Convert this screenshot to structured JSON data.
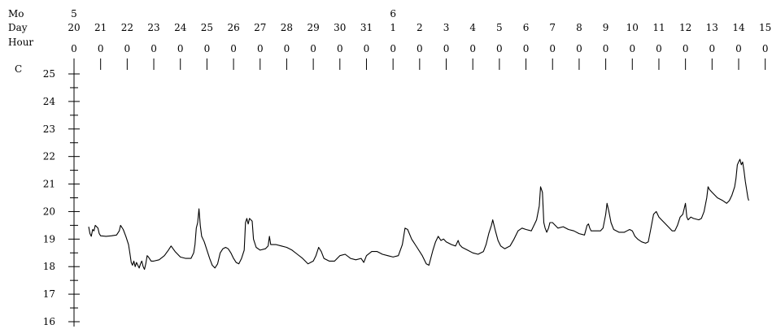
{
  "chart_data": {
    "type": "line",
    "row_labels": {
      "month": "Mo",
      "day": "Day",
      "hour": "Hour"
    },
    "ylabel": "C",
    "months": [
      {
        "day_index": 0,
        "label": "5"
      },
      {
        "day_index": 12,
        "label": "6"
      }
    ],
    "days": [
      "20",
      "21",
      "22",
      "23",
      "24",
      "25",
      "26",
      "27",
      "28",
      "29",
      "30",
      "31",
      "1",
      "2",
      "3",
      "4",
      "5",
      "6",
      "7",
      "8",
      "9",
      "10",
      "11",
      "12",
      "13",
      "14",
      "15"
    ],
    "hours": [
      "0",
      "0",
      "0",
      "0",
      "0",
      "0",
      "0",
      "0",
      "0",
      "0",
      "0",
      "0",
      "0",
      "0",
      "0",
      "0",
      "0",
      "0",
      "0",
      "0",
      "0",
      "0",
      "0",
      "0",
      "0",
      "0",
      "0"
    ],
    "ylim": [
      16,
      25
    ],
    "yticks": [
      16,
      17,
      18,
      19,
      20,
      21,
      22,
      23,
      24,
      25
    ],
    "x_unit": "days since May 20 00:00",
    "series": [
      {
        "points": [
          [
            0.55,
            19.45
          ],
          [
            0.6,
            19.2
          ],
          [
            0.65,
            19.1
          ],
          [
            0.7,
            19.35
          ],
          [
            0.75,
            19.3
          ],
          [
            0.8,
            19.5
          ],
          [
            0.85,
            19.45
          ],
          [
            0.9,
            19.4
          ],
          [
            0.95,
            19.2
          ],
          [
            1.0,
            19.12
          ],
          [
            1.2,
            19.1
          ],
          [
            1.4,
            19.12
          ],
          [
            1.6,
            19.15
          ],
          [
            1.7,
            19.3
          ],
          [
            1.75,
            19.5
          ],
          [
            1.85,
            19.35
          ],
          [
            1.95,
            19.1
          ],
          [
            2.05,
            18.8
          ],
          [
            2.1,
            18.5
          ],
          [
            2.15,
            18.15
          ],
          [
            2.2,
            18.05
          ],
          [
            2.25,
            18.2
          ],
          [
            2.3,
            18.0
          ],
          [
            2.35,
            18.15
          ],
          [
            2.4,
            18.05
          ],
          [
            2.45,
            17.95
          ],
          [
            2.5,
            18.1
          ],
          [
            2.55,
            18.2
          ],
          [
            2.6,
            18.0
          ],
          [
            2.65,
            17.9
          ],
          [
            2.7,
            18.1
          ],
          [
            2.75,
            18.4
          ],
          [
            2.8,
            18.35
          ],
          [
            2.9,
            18.2
          ],
          [
            3.0,
            18.2
          ],
          [
            3.2,
            18.25
          ],
          [
            3.4,
            18.4
          ],
          [
            3.55,
            18.6
          ],
          [
            3.65,
            18.75
          ],
          [
            3.8,
            18.55
          ],
          [
            4.0,
            18.35
          ],
          [
            4.2,
            18.3
          ],
          [
            4.4,
            18.3
          ],
          [
            4.5,
            18.5
          ],
          [
            4.55,
            18.8
          ],
          [
            4.6,
            19.4
          ],
          [
            4.65,
            19.6
          ],
          [
            4.7,
            20.1
          ],
          [
            4.75,
            19.5
          ],
          [
            4.8,
            19.1
          ],
          [
            4.9,
            18.9
          ],
          [
            5.0,
            18.6
          ],
          [
            5.1,
            18.3
          ],
          [
            5.2,
            18.05
          ],
          [
            5.3,
            17.95
          ],
          [
            5.4,
            18.1
          ],
          [
            5.5,
            18.5
          ],
          [
            5.6,
            18.65
          ],
          [
            5.7,
            18.7
          ],
          [
            5.8,
            18.65
          ],
          [
            5.9,
            18.5
          ],
          [
            6.0,
            18.3
          ],
          [
            6.1,
            18.15
          ],
          [
            6.2,
            18.1
          ],
          [
            6.3,
            18.3
          ],
          [
            6.4,
            18.6
          ],
          [
            6.45,
            19.6
          ],
          [
            6.5,
            19.75
          ],
          [
            6.55,
            19.55
          ],
          [
            6.6,
            19.75
          ],
          [
            6.7,
            19.65
          ],
          [
            6.75,
            19.0
          ],
          [
            6.85,
            18.7
          ],
          [
            7.0,
            18.6
          ],
          [
            7.2,
            18.65
          ],
          [
            7.3,
            18.75
          ],
          [
            7.35,
            19.1
          ],
          [
            7.4,
            18.8
          ],
          [
            7.6,
            18.8
          ],
          [
            7.8,
            18.75
          ],
          [
            8.0,
            18.7
          ],
          [
            8.2,
            18.6
          ],
          [
            8.4,
            18.45
          ],
          [
            8.6,
            18.3
          ],
          [
            8.8,
            18.1
          ],
          [
            9.0,
            18.2
          ],
          [
            9.1,
            18.4
          ],
          [
            9.2,
            18.7
          ],
          [
            9.3,
            18.55
          ],
          [
            9.4,
            18.3
          ],
          [
            9.6,
            18.2
          ],
          [
            9.8,
            18.2
          ],
          [
            10.0,
            18.4
          ],
          [
            10.2,
            18.45
          ],
          [
            10.4,
            18.3
          ],
          [
            10.6,
            18.25
          ],
          [
            10.8,
            18.3
          ],
          [
            10.9,
            18.15
          ],
          [
            11.0,
            18.4
          ],
          [
            11.2,
            18.55
          ],
          [
            11.4,
            18.55
          ],
          [
            11.6,
            18.45
          ],
          [
            11.8,
            18.4
          ],
          [
            12.0,
            18.35
          ],
          [
            12.2,
            18.4
          ],
          [
            12.35,
            18.8
          ],
          [
            12.45,
            19.4
          ],
          [
            12.55,
            19.35
          ],
          [
            12.7,
            19.0
          ],
          [
            12.9,
            18.7
          ],
          [
            13.1,
            18.4
          ],
          [
            13.25,
            18.1
          ],
          [
            13.35,
            18.05
          ],
          [
            13.5,
            18.6
          ],
          [
            13.6,
            18.9
          ],
          [
            13.7,
            19.1
          ],
          [
            13.8,
            18.95
          ],
          [
            13.9,
            19.0
          ],
          [
            14.0,
            18.9
          ],
          [
            14.2,
            18.8
          ],
          [
            14.35,
            18.75
          ],
          [
            14.45,
            18.95
          ],
          [
            14.5,
            18.8
          ],
          [
            14.6,
            18.7
          ],
          [
            14.8,
            18.6
          ],
          [
            15.0,
            18.5
          ],
          [
            15.2,
            18.45
          ],
          [
            15.4,
            18.55
          ],
          [
            15.5,
            18.8
          ],
          [
            15.6,
            19.2
          ],
          [
            15.7,
            19.5
          ],
          [
            15.75,
            19.7
          ],
          [
            15.85,
            19.3
          ],
          [
            15.95,
            18.95
          ],
          [
            16.05,
            18.75
          ],
          [
            16.2,
            18.65
          ],
          [
            16.4,
            18.75
          ],
          [
            16.55,
            19.0
          ],
          [
            16.7,
            19.3
          ],
          [
            16.85,
            19.4
          ],
          [
            17.0,
            19.35
          ],
          [
            17.2,
            19.3
          ],
          [
            17.3,
            19.5
          ],
          [
            17.4,
            19.7
          ],
          [
            17.5,
            20.2
          ],
          [
            17.55,
            20.9
          ],
          [
            17.62,
            20.7
          ],
          [
            17.67,
            19.6
          ],
          [
            17.72,
            19.4
          ],
          [
            17.78,
            19.25
          ],
          [
            17.85,
            19.4
          ],
          [
            17.9,
            19.6
          ],
          [
            18.0,
            19.6
          ],
          [
            18.1,
            19.5
          ],
          [
            18.2,
            19.4
          ],
          [
            18.4,
            19.45
          ],
          [
            18.6,
            19.35
          ],
          [
            18.8,
            19.3
          ],
          [
            19.0,
            19.2
          ],
          [
            19.2,
            19.15
          ],
          [
            19.3,
            19.5
          ],
          [
            19.35,
            19.55
          ],
          [
            19.4,
            19.4
          ],
          [
            19.45,
            19.3
          ],
          [
            19.6,
            19.3
          ],
          [
            19.8,
            19.3
          ],
          [
            19.9,
            19.4
          ],
          [
            20.0,
            19.9
          ],
          [
            20.05,
            20.3
          ],
          [
            20.12,
            20.0
          ],
          [
            20.2,
            19.6
          ],
          [
            20.3,
            19.35
          ],
          [
            20.5,
            19.25
          ],
          [
            20.7,
            19.25
          ],
          [
            20.8,
            19.3
          ],
          [
            20.9,
            19.35
          ],
          [
            21.0,
            19.3
          ],
          [
            21.1,
            19.1
          ],
          [
            21.2,
            19.0
          ],
          [
            21.35,
            18.9
          ],
          [
            21.5,
            18.85
          ],
          [
            21.6,
            18.9
          ],
          [
            21.7,
            19.4
          ],
          [
            21.8,
            19.9
          ],
          [
            21.9,
            20.0
          ],
          [
            22.0,
            19.8
          ],
          [
            22.1,
            19.7
          ],
          [
            22.2,
            19.6
          ],
          [
            22.4,
            19.4
          ],
          [
            22.5,
            19.3
          ],
          [
            22.6,
            19.3
          ],
          [
            22.7,
            19.5
          ],
          [
            22.8,
            19.8
          ],
          [
            22.9,
            19.9
          ],
          [
            23.0,
            20.3
          ],
          [
            23.05,
            19.8
          ],
          [
            23.1,
            19.7
          ],
          [
            23.2,
            19.8
          ],
          [
            23.3,
            19.75
          ],
          [
            23.5,
            19.7
          ],
          [
            23.6,
            19.75
          ],
          [
            23.7,
            20.0
          ],
          [
            23.8,
            20.5
          ],
          [
            23.85,
            20.9
          ],
          [
            23.9,
            20.8
          ],
          [
            24.0,
            20.7
          ],
          [
            24.1,
            20.6
          ],
          [
            24.2,
            20.5
          ],
          [
            24.4,
            20.4
          ],
          [
            24.55,
            20.3
          ],
          [
            24.65,
            20.4
          ],
          [
            24.75,
            20.6
          ],
          [
            24.85,
            20.9
          ],
          [
            24.9,
            21.2
          ],
          [
            24.95,
            21.7
          ],
          [
            25.0,
            21.8
          ],
          [
            25.05,
            21.9
          ],
          [
            25.1,
            21.7
          ],
          [
            25.15,
            21.8
          ],
          [
            25.2,
            21.5
          ],
          [
            25.25,
            21.1
          ],
          [
            25.3,
            20.8
          ],
          [
            25.35,
            20.5
          ],
          [
            25.38,
            20.4
          ]
        ]
      }
    ]
  }
}
